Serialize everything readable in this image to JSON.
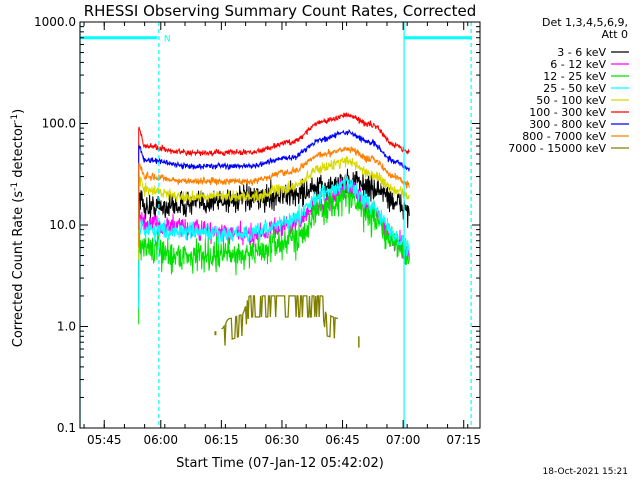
{
  "chart_data": {
    "type": "line",
    "title": "RHESSI Observing Summary Count Rates, Corrected",
    "xlabel": "Start Time (07-Jan-12 05:42:02)",
    "ylabel_prefix": "Corrected Count Rate (s",
    "ylabel_sup1": "-1",
    "ylabel_mid": " detector",
    "ylabel_sup2": "-1",
    "ylabel_suffix": ")",
    "yscale": "log",
    "ylim": [
      0.1,
      1000
    ],
    "xlim": [
      -2.03,
      97
    ],
    "x_units": "minutes after 05:42:02",
    "xticks": [
      {
        "t": 3.97,
        "label": "05:45"
      },
      {
        "t": 17.97,
        "label": "06:00"
      },
      {
        "t": 32.97,
        "label": "06:15"
      },
      {
        "t": 47.97,
        "label": "06:30"
      },
      {
        "t": 62.97,
        "label": "06:45"
      },
      {
        "t": 77.97,
        "label": "07:00"
      },
      {
        "t": 92.97,
        "label": "07:15"
      }
    ],
    "yticks": [
      {
        "v": 1000,
        "label": "1000.0"
      },
      {
        "v": 100,
        "label": "100.0"
      },
      {
        "v": 10,
        "label": "10.0"
      },
      {
        "v": 1,
        "label": "1.0"
      },
      {
        "v": 0.1,
        "label": "0.1"
      }
    ],
    "legend": {
      "position": "top-right",
      "header": [
        "Det 1,3,4,5,6,9,",
        "Att 0"
      ]
    },
    "night_marker_label": "N",
    "annotations": {
      "night_bar_level": 700,
      "night_intervals": [
        [
          -2.03,
          17.0
        ],
        [
          78.2,
          95.0
        ]
      ],
      "solid_cyan_lines_t": [
        -2.03,
        78.2
      ],
      "dashed_cyan_lines_t": [
        17.5,
        94.8
      ]
    },
    "timestamp": "18-Oct-2021 15:21",
    "series": [
      {
        "name": "3 - 6 keV",
        "color": "#000000",
        "t_start": 12.5,
        "t_end": 79.5,
        "base": 15,
        "peak": 26,
        "noise": 0.18,
        "anchors": [
          [
            12.5,
            20
          ],
          [
            14,
            15
          ],
          [
            40,
            18
          ],
          [
            50,
            20
          ],
          [
            58,
            23
          ],
          [
            65,
            27
          ],
          [
            72,
            22
          ],
          [
            77,
            16
          ],
          [
            79.5,
            14
          ]
        ]
      },
      {
        "name": "6 - 12 keV",
        "color": "#ff00ff",
        "t_start": 12.5,
        "t_end": 79.5,
        "noise": 0.15,
        "anchors": [
          [
            12.5,
            12
          ],
          [
            14,
            10
          ],
          [
            40,
            8
          ],
          [
            50,
            10
          ],
          [
            58,
            16
          ],
          [
            64,
            23
          ],
          [
            70,
            14
          ],
          [
            76,
            7
          ],
          [
            79.5,
            5
          ]
        ]
      },
      {
        "name": "12 - 25 keV",
        "color": "#00e000",
        "t_start": 12.5,
        "t_end": 79.5,
        "noise": 0.22,
        "anchors": [
          [
            12.5,
            7
          ],
          [
            14,
            6
          ],
          [
            22,
            5
          ],
          [
            40,
            5.2
          ],
          [
            50,
            7
          ],
          [
            58,
            14
          ],
          [
            64,
            19
          ],
          [
            70,
            12
          ],
          [
            76,
            6.5
          ],
          [
            79.5,
            5
          ]
        ]
      },
      {
        "name": "25 - 50 keV",
        "color": "#00ffff",
        "t_start": 12.5,
        "t_end": 79.5,
        "noise": 0.12,
        "anchors": [
          [
            12.5,
            10
          ],
          [
            14,
            9
          ],
          [
            40,
            8
          ],
          [
            50,
            11
          ],
          [
            58,
            20
          ],
          [
            64,
            26
          ],
          [
            70,
            16
          ],
          [
            76,
            8
          ],
          [
            79.5,
            6
          ]
        ]
      },
      {
        "name": "50 - 100 keV",
        "color": "#d8d800",
        "t_start": 12.5,
        "t_end": 79.5,
        "noise": 0.08,
        "anchors": [
          [
            12.5,
            30
          ],
          [
            14,
            22
          ],
          [
            25,
            19
          ],
          [
            40,
            19
          ],
          [
            50,
            23
          ],
          [
            58,
            37
          ],
          [
            64,
            43
          ],
          [
            70,
            32
          ],
          [
            76,
            22
          ],
          [
            79.5,
            19
          ]
        ]
      },
      {
        "name": "100 - 300 keV",
        "color": "#ff0000",
        "t_start": 12.5,
        "t_end": 79.5,
        "noise": 0.04,
        "anchors": [
          [
            12.5,
            88
          ],
          [
            14,
            60
          ],
          [
            25,
            51
          ],
          [
            40,
            52
          ],
          [
            50,
            65
          ],
          [
            58,
            105
          ],
          [
            64,
            120
          ],
          [
            70,
            98
          ],
          [
            76,
            62
          ],
          [
            79.5,
            52
          ]
        ]
      },
      {
        "name": "300 - 800 keV",
        "color": "#0000ff",
        "t_start": 12.5,
        "t_end": 79.5,
        "noise": 0.04,
        "anchors": [
          [
            12.5,
            60
          ],
          [
            14,
            44
          ],
          [
            25,
            38
          ],
          [
            40,
            38
          ],
          [
            50,
            46
          ],
          [
            58,
            70
          ],
          [
            64,
            82
          ],
          [
            70,
            65
          ],
          [
            76,
            42
          ],
          [
            79.5,
            36
          ]
        ]
      },
      {
        "name": "800 - 7000 keV",
        "color": "#ff8000",
        "t_start": 12.5,
        "t_end": 79.5,
        "noise": 0.05,
        "anchors": [
          [
            12.5,
            40
          ],
          [
            14,
            30
          ],
          [
            25,
            27
          ],
          [
            40,
            27
          ],
          [
            50,
            33
          ],
          [
            58,
            50
          ],
          [
            64,
            57
          ],
          [
            70,
            45
          ],
          [
            76,
            30
          ],
          [
            79.5,
            25
          ]
        ]
      },
      {
        "name": "7000 - 15000 keV",
        "color": "#808000",
        "t_start": 33,
        "t_end": 62,
        "noise": 0,
        "anchors": [
          [
            33,
            0.95
          ],
          [
            35,
            1.2
          ],
          [
            38,
            1.3
          ],
          [
            40,
            2.0
          ],
          [
            58,
            2.0
          ],
          [
            59,
            1.3
          ],
          [
            62,
            1.2
          ]
        ]
      }
    ]
  }
}
